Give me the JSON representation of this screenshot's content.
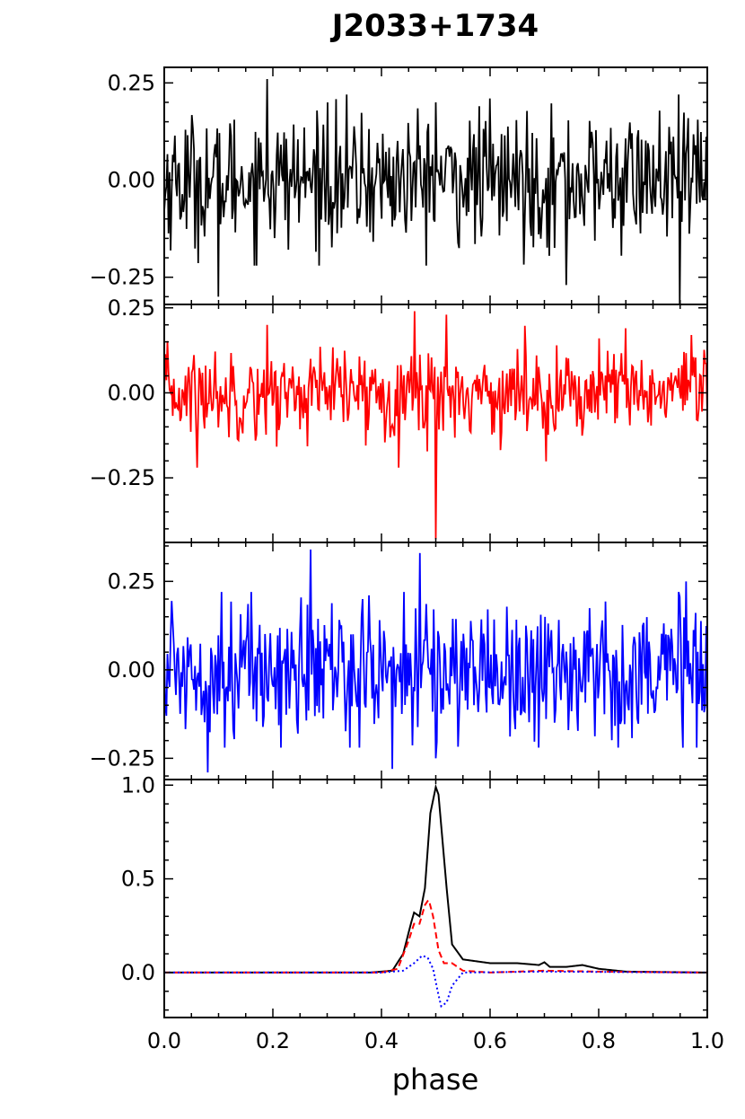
{
  "chart_data": {
    "type": "line",
    "title": "J2033+1734",
    "xlabel": "phase",
    "xlim": [
      0.0,
      1.0
    ],
    "x_ticks": [
      "0.0",
      "0.2",
      "0.4",
      "0.6",
      "0.8",
      "1.0"
    ],
    "panels": [
      {
        "name": "panel-1",
        "color": "#000000",
        "linestyle": "solid",
        "ylim": [
          -0.32,
          0.29
        ],
        "y_ticks": [
          "0.25",
          "0.00",
          "−0.25"
        ],
        "y_tick_values": [
          0.25,
          0.0,
          -0.25
        ],
        "noise_sigma": 0.085,
        "points": [
          [
            0.0,
            -0.08
          ],
          [
            0.1,
            -0.3
          ],
          [
            0.19,
            0.26
          ],
          [
            0.3,
            0.2
          ],
          [
            0.5,
            0.2
          ],
          [
            0.6,
            0.21
          ],
          [
            0.74,
            -0.27
          ],
          [
            0.95,
            -0.32
          ],
          [
            1.0,
            -0.05
          ]
        ]
      },
      {
        "name": "panel-2",
        "color": "#ff0000",
        "linestyle": "solid",
        "ylim": [
          -0.44,
          0.26
        ],
        "y_ticks": [
          "0.25",
          "0.00",
          "−0.25"
        ],
        "y_tick_values": [
          0.25,
          0.0,
          -0.25
        ],
        "noise_sigma": 0.065,
        "points": [
          [
            0.0,
            0.0
          ],
          [
            0.06,
            -0.22
          ],
          [
            0.19,
            0.2
          ],
          [
            0.46,
            0.24
          ],
          [
            0.5,
            -0.43
          ],
          [
            0.52,
            0.23
          ],
          [
            0.85,
            0.19
          ],
          [
            0.97,
            0.17
          ],
          [
            1.0,
            -0.07
          ]
        ]
      },
      {
        "name": "panel-3",
        "color": "#0000ff",
        "linestyle": "solid",
        "ylim": [
          -0.31,
          0.36
        ],
        "y_ticks": [
          "0.25",
          "0.00",
          "−0.25"
        ],
        "y_tick_values": [
          0.25,
          0.0,
          -0.25
        ],
        "noise_sigma": 0.1,
        "points": [
          [
            0.0,
            0.05
          ],
          [
            0.08,
            -0.29
          ],
          [
            0.27,
            0.34
          ],
          [
            0.42,
            -0.28
          ],
          [
            0.47,
            0.33
          ],
          [
            0.5,
            -0.25
          ],
          [
            0.69,
            -0.22
          ],
          [
            0.96,
            0.25
          ],
          [
            1.0,
            0.1
          ]
        ]
      },
      {
        "name": "panel-4",
        "ylim": [
          -0.24,
          1.03
        ],
        "y_ticks": [
          "1.0",
          "0.5",
          "0.0"
        ],
        "y_tick_values": [
          1.0,
          0.5,
          0.0
        ],
        "series": [
          {
            "color": "#000000",
            "linestyle": "solid",
            "points": [
              [
                0.0,
                0.0
              ],
              [
                0.38,
                0.0
              ],
              [
                0.42,
                0.01
              ],
              [
                0.44,
                0.1
              ],
              [
                0.455,
                0.27
              ],
              [
                0.46,
                0.32
              ],
              [
                0.47,
                0.3
              ],
              [
                0.48,
                0.45
              ],
              [
                0.49,
                0.85
              ],
              [
                0.5,
                0.99
              ],
              [
                0.505,
                0.95
              ],
              [
                0.52,
                0.45
              ],
              [
                0.53,
                0.15
              ],
              [
                0.55,
                0.07
              ],
              [
                0.6,
                0.05
              ],
              [
                0.65,
                0.05
              ],
              [
                0.69,
                0.04
              ],
              [
                0.7,
                0.055
              ],
              [
                0.71,
                0.03
              ],
              [
                0.74,
                0.03
              ],
              [
                0.77,
                0.04
              ],
              [
                0.8,
                0.02
              ],
              [
                0.85,
                0.005
              ],
              [
                1.0,
                0.0
              ]
            ]
          },
          {
            "color": "#ff0000",
            "linestyle": "dashed",
            "points": [
              [
                0.0,
                0.0
              ],
              [
                0.4,
                0.0
              ],
              [
                0.43,
                0.02
              ],
              [
                0.45,
                0.17
              ],
              [
                0.46,
                0.26
              ],
              [
                0.47,
                0.26
              ],
              [
                0.48,
                0.36
              ],
              [
                0.487,
                0.39
              ],
              [
                0.495,
                0.3
              ],
              [
                0.505,
                0.12
              ],
              [
                0.515,
                0.05
              ],
              [
                0.53,
                0.05
              ],
              [
                0.55,
                0.01
              ],
              [
                0.6,
                0.0
              ],
              [
                0.7,
                0.01
              ],
              [
                0.8,
                0.005
              ],
              [
                1.0,
                0.0
              ]
            ]
          },
          {
            "color": "#0000ff",
            "linestyle": "dotted",
            "points": [
              [
                0.0,
                0.0
              ],
              [
                0.4,
                0.0
              ],
              [
                0.44,
                0.01
              ],
              [
                0.46,
                0.05
              ],
              [
                0.475,
                0.09
              ],
              [
                0.485,
                0.08
              ],
              [
                0.495,
                0.02
              ],
              [
                0.505,
                -0.12
              ],
              [
                0.51,
                -0.18
              ],
              [
                0.52,
                -0.16
              ],
              [
                0.53,
                -0.07
              ],
              [
                0.55,
                0.0
              ],
              [
                0.7,
                0.005
              ],
              [
                1.0,
                0.0
              ]
            ]
          }
        ]
      }
    ]
  }
}
